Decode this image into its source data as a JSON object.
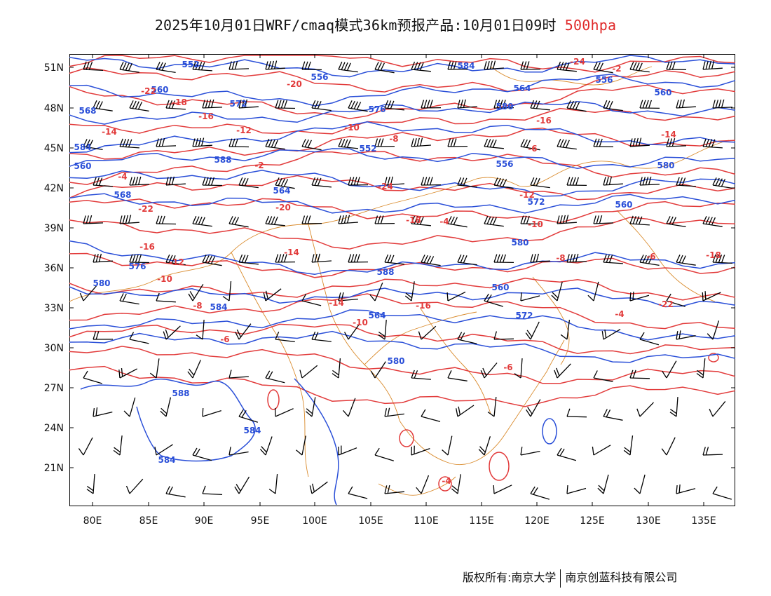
{
  "title": {
    "main": "2025年10月01日WRF/cmaq模式36km预报产品:10月01日09时",
    "level": "500hpa",
    "level_color": "#e02a2a"
  },
  "colors": {
    "height_contour": "#2a4fd8",
    "temperature_contour": "#e23b3b",
    "boundary": "#d98a2b",
    "wind_barb": "#000000"
  },
  "axes": {
    "lat_labels": [
      "51N",
      "48N",
      "45N",
      "42N",
      "39N",
      "36N",
      "33N",
      "30N",
      "27N",
      "24N",
      "21N"
    ],
    "lon_labels": [
      "80E",
      "85E",
      "90E",
      "95E",
      "100E",
      "105E",
      "110E",
      "115E",
      "120E",
      "125E",
      "130E",
      "135E"
    ]
  },
  "height_labels": [
    "552",
    "556",
    "560",
    "564",
    "568",
    "572",
    "576",
    "580",
    "584",
    "588",
    "552",
    "556",
    "560",
    "564",
    "568",
    "572",
    "576",
    "580",
    "584",
    "588",
    "560",
    "564",
    "572",
    "580",
    "584",
    "588",
    "584",
    "584",
    "580",
    "580",
    "560",
    "556",
    "560"
  ],
  "temp_labels": [
    "-24",
    "-22",
    "-20",
    "-18",
    "-16",
    "-14",
    "-12",
    "-10",
    "-8",
    "-6",
    "-4",
    "-2",
    "-24",
    "-22",
    "-20",
    "-18",
    "-16",
    "-14",
    "-12",
    "-10",
    "-8",
    "-6",
    "-4",
    "-2",
    "-16",
    "-14",
    "-12",
    "-10",
    "-8",
    "-6",
    "-4",
    "-22",
    "-18",
    "-16",
    "-14",
    "-10",
    "-6",
    "-4"
  ],
  "footer": {
    "left": "版权所有:南京大学",
    "right": "南京创蓝科技有限公司"
  }
}
